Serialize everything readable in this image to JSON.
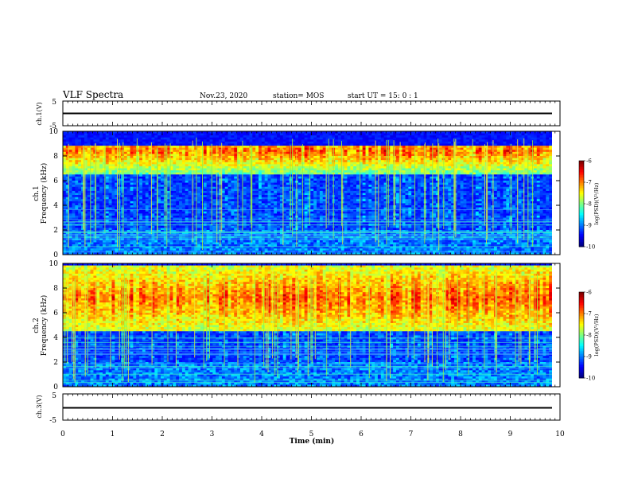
{
  "header": {
    "title": "VLF Spectra",
    "date": "Nov.23, 2020",
    "station": "station= MOS",
    "start": "start  UT =   15: 0  : 1"
  },
  "chart_data": [
    {
      "type": "line",
      "name": "ch1-waveform",
      "ylabel": "ch.1(V)",
      "ylim": [
        -5,
        5
      ],
      "y_ticks": [
        "5",
        "-5"
      ],
      "x": [
        0,
        9.85
      ],
      "values": [
        0,
        0
      ]
    },
    {
      "type": "heatmap",
      "name": "ch1-spectrogram",
      "ylabel": "ch.1\nFrequency  (kHz)",
      "ylim": [
        0,
        10
      ],
      "y_ticks": [
        "0",
        "2",
        "4",
        "6",
        "8",
        "10"
      ],
      "xlim": [
        0,
        10
      ],
      "colorbar": {
        "label": "log(PSD)(V²/Hz)",
        "range": [
          -10,
          -6
        ],
        "ticks": [
          "-6",
          "-7",
          "-8",
          "-9",
          "-10"
        ]
      },
      "seed": 17,
      "burst_band": [
        6.5,
        8.9
      ],
      "burst_center": 8.4
    },
    {
      "type": "heatmap",
      "name": "ch2-spectrogram",
      "ylabel": "ch.2\nFrequency  (kHz)",
      "ylim": [
        0,
        10
      ],
      "y_ticks": [
        "0",
        "2",
        "4",
        "6",
        "8",
        "10"
      ],
      "xlim": [
        0,
        10
      ],
      "colorbar": {
        "label": "log(PSD)(V²/Hz)",
        "range": [
          -10,
          -6
        ],
        "ticks": [
          "-6",
          "-7",
          "-8",
          "-9",
          "-10"
        ]
      },
      "seed": 53,
      "burst_band": [
        4.5,
        9.8
      ],
      "burst_center": 7.2
    },
    {
      "type": "line",
      "name": "ch3-waveform",
      "ylabel": "ch.3(V)",
      "ylim": [
        -5,
        5
      ],
      "y_ticks": [
        "5",
        "-5"
      ],
      "x": [
        0,
        9.85
      ],
      "values": [
        0,
        0
      ]
    }
  ],
  "xaxis": {
    "label": "Time  (min)",
    "xlim": [
      0,
      10
    ],
    "ticks": [
      "0",
      "1",
      "2",
      "3",
      "4",
      "5",
      "6",
      "7",
      "8",
      "9",
      "10"
    ]
  }
}
